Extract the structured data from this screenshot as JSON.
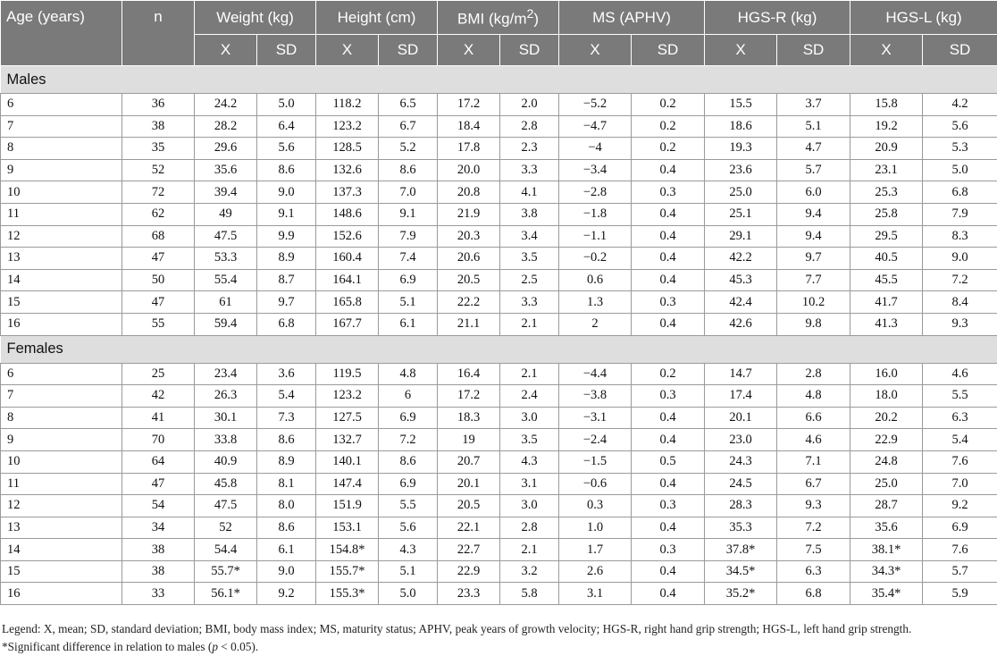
{
  "headers": {
    "age": "Age (years)",
    "n": "n",
    "groups": [
      "Weight (kg)",
      "Height (cm)",
      "BMI (kg/m",
      "MS (APHV)",
      "HGS-R  (kg)",
      "HGS-L (kg)"
    ],
    "bmi_sup": "2",
    "bmi_close": ")",
    "sub": [
      "X",
      "SD",
      "X",
      "SD",
      "X",
      "SD",
      "X",
      "SD",
      "X",
      "SD",
      "X",
      "SD"
    ]
  },
  "sections": [
    {
      "label": "Males",
      "rows": [
        [
          "6",
          "36",
          "24.2",
          "5.0",
          "118.2",
          "6.5",
          "17.2",
          "2.0",
          "−5.2",
          "0.2",
          "15.5",
          "3.7",
          "15.8",
          "4.2"
        ],
        [
          "7",
          "38",
          "28.2",
          "6.4",
          "123.2",
          "6.7",
          "18.4",
          "2.8",
          "−4.7",
          "0.2",
          "18.6",
          "5.1",
          "19.2",
          "5.6"
        ],
        [
          "8",
          "35",
          "29.6",
          "5.6",
          "128.5",
          "5.2",
          "17.8",
          "2.3",
          "−4",
          "0.2",
          "19.3",
          "4.7",
          "20.9",
          "5.3"
        ],
        [
          "9",
          "52",
          "35.6",
          "8.6",
          "132.6",
          "8.6",
          "20.0",
          "3.3",
          "−3.4",
          "0.4",
          "23.6",
          "5.7",
          "23.1",
          "5.0"
        ],
        [
          "10",
          "72",
          "39.4",
          "9.0",
          "137.3",
          "7.0",
          "20.8",
          "4.1",
          "−2.8",
          "0.3",
          "25.0",
          "6.0",
          "25.3",
          "6.8"
        ],
        [
          "11",
          "62",
          "49",
          "9.1",
          "148.6",
          "9.1",
          "21.9",
          "3.8",
          "−1.8",
          "0.4",
          "25.1",
          "9.4",
          "25.8",
          "7.9"
        ],
        [
          "12",
          "68",
          "47.5",
          "9.9",
          "152.6",
          "7.9",
          "20.3",
          "3.4",
          "−1.1",
          "0.4",
          "29.1",
          "9.4",
          "29.5",
          "8.3"
        ],
        [
          "13",
          "47",
          "53.3",
          "8.9",
          "160.4",
          "7.4",
          "20.6",
          "3.5",
          "−0.2",
          "0.4",
          "42.2",
          "9.7",
          "40.5",
          "9.0"
        ],
        [
          "14",
          "50",
          "55.4",
          "8.7",
          "164.1",
          "6.9",
          "20.5",
          "2.5",
          "0.6",
          "0.4",
          "45.3",
          "7.7",
          "45.5",
          "7.2"
        ],
        [
          "15",
          "47",
          "61",
          "9.7",
          "165.8",
          "5.1",
          "22.2",
          "3.3",
          "1.3",
          "0.3",
          "42.4",
          "10.2",
          "41.7",
          "8.4"
        ],
        [
          "16",
          "55",
          "59.4",
          "6.8",
          "167.7",
          "6.1",
          "21.1",
          "2.1",
          "2",
          "0.4",
          "42.6",
          "9.8",
          "41.3",
          "9.3"
        ]
      ]
    },
    {
      "label": "Females",
      "rows": [
        [
          "6",
          "25",
          "23.4",
          "3.6",
          "119.5",
          "4.8",
          "16.4",
          "2.1",
          "−4.4",
          "0.2",
          "14.7",
          "2.8",
          "16.0",
          "4.6"
        ],
        [
          "7",
          "42",
          "26.3",
          "5.4",
          "123.2",
          "6",
          "17.2",
          "2.4",
          "−3.8",
          "0.3",
          "17.4",
          "4.8",
          "18.0",
          "5.5"
        ],
        [
          "8",
          "41",
          "30.1",
          "7.3",
          "127.5",
          "6.9",
          "18.3",
          "3.0",
          "−3.1",
          "0.4",
          "20.1",
          "6.6",
          "20.2",
          "6.3"
        ],
        [
          "9",
          "70",
          "33.8",
          "8.6",
          "132.7",
          "7.2",
          "19",
          "3.5",
          "−2.4",
          "0.4",
          "23.0",
          "4.6",
          "22.9",
          "5.4"
        ],
        [
          "10",
          "64",
          "40.9",
          "8.9",
          "140.1",
          "8.6",
          "20.7",
          "4.3",
          "−1.5",
          "0.5",
          "24.3",
          "7.1",
          "24.8",
          "7.6"
        ],
        [
          "11",
          "47",
          "45.8",
          "8.1",
          "147.4",
          "6.9",
          "20.1",
          "3.1",
          "−0.6",
          "0.4",
          "24.5",
          "6.7",
          "25.0",
          "7.0"
        ],
        [
          "12",
          "54",
          "47.5",
          "8.0",
          "151.9",
          "5.5",
          "20.5",
          "3.0",
          "0.3",
          "0.3",
          "28.3",
          "9.3",
          "28.7",
          "9.2"
        ],
        [
          "13",
          "34",
          "52",
          "8.6",
          "153.1",
          "5.6",
          "22.1",
          "2.8",
          "1.0",
          "0.4",
          "35.3",
          "7.2",
          "35.6",
          "6.9"
        ],
        [
          "14",
          "38",
          "54.4",
          "6.1",
          "154.8*",
          "4.3",
          "22.7",
          "2.1",
          "1.7",
          "0.3",
          "37.8*",
          "7.5",
          "38.1*",
          "7.6"
        ],
        [
          "15",
          "38",
          "55.7*",
          "9.0",
          "155.7*",
          "5.1",
          "22.9",
          "3.2",
          "2.6",
          "0.4",
          "34.5*",
          "6.3",
          "34.3*",
          "5.7"
        ],
        [
          "16",
          "33",
          "56.1*",
          "9.2",
          "155.3*",
          "5.0",
          "23.3",
          "5.8",
          "3.1",
          "0.4",
          "35.2*",
          "6.8",
          "35.4*",
          "5.9"
        ]
      ]
    }
  ],
  "legend": {
    "line1": "Legend: X, mean; SD, standard deviation; BMI, body mass index; MS, maturity status; APHV, peak years of growth velocity; HGS-R, right hand grip strength; HGS-L, left hand grip strength.",
    "line2_prefix": "*Significant difference in relation to males (",
    "line2_p": "p",
    "line2_suffix": " < 0.05)."
  }
}
